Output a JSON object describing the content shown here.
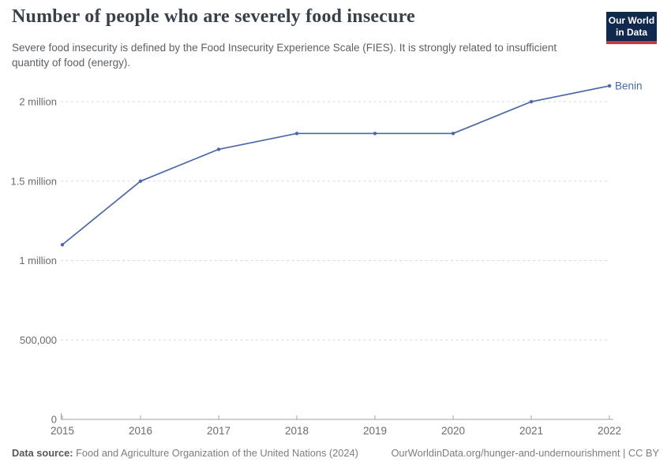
{
  "header": {
    "title": "Number of people who are severely food insecure",
    "subtitle": "Severe food insecurity is defined by the Food Insecurity Experience Scale (FIES). It is strongly related to insufficient quantity of food (energy).",
    "logo": {
      "line1": "Our World",
      "line2": "in Data"
    }
  },
  "chart_data": {
    "type": "line",
    "title": "Number of people who are severely food insecure",
    "x": [
      2015,
      2016,
      2017,
      2018,
      2019,
      2020,
      2021,
      2022
    ],
    "x_tick_labels": [
      "2015",
      "2016",
      "2017",
      "2018",
      "2019",
      "2020",
      "2021",
      "2022"
    ],
    "series": [
      {
        "name": "Benin",
        "color": "#4a68a8",
        "values": [
          1100000,
          1500000,
          1700000,
          1800000,
          1800000,
          1800000,
          2000000,
          2100000
        ]
      }
    ],
    "y_ticks": [
      {
        "value": 0,
        "label": "0"
      },
      {
        "value": 500000,
        "label": "500,000"
      },
      {
        "value": 1000000,
        "label": "1 million"
      },
      {
        "value": 1500000,
        "label": "1.5 million"
      },
      {
        "value": 2000000,
        "label": "2 million"
      }
    ],
    "ylim": [
      0,
      2150000
    ],
    "xlabel": "",
    "ylabel": "",
    "grid": "horizontal-dashed",
    "legend": "end-of-line-label"
  },
  "footer": {
    "data_source_label": "Data source:",
    "data_source_value": "Food and Agriculture Organization of the United Nations (2024)",
    "citation": "OurWorldinData.org/hunger-and-undernourishment | CC BY"
  },
  "colors": {
    "line": "#4a68a8",
    "grid": "#d8d8d8",
    "axis": "#a1a1a1",
    "tick_label": "#6b6b6b",
    "logo_bg": "#12294e",
    "logo_stripe": "#d0393b"
  }
}
